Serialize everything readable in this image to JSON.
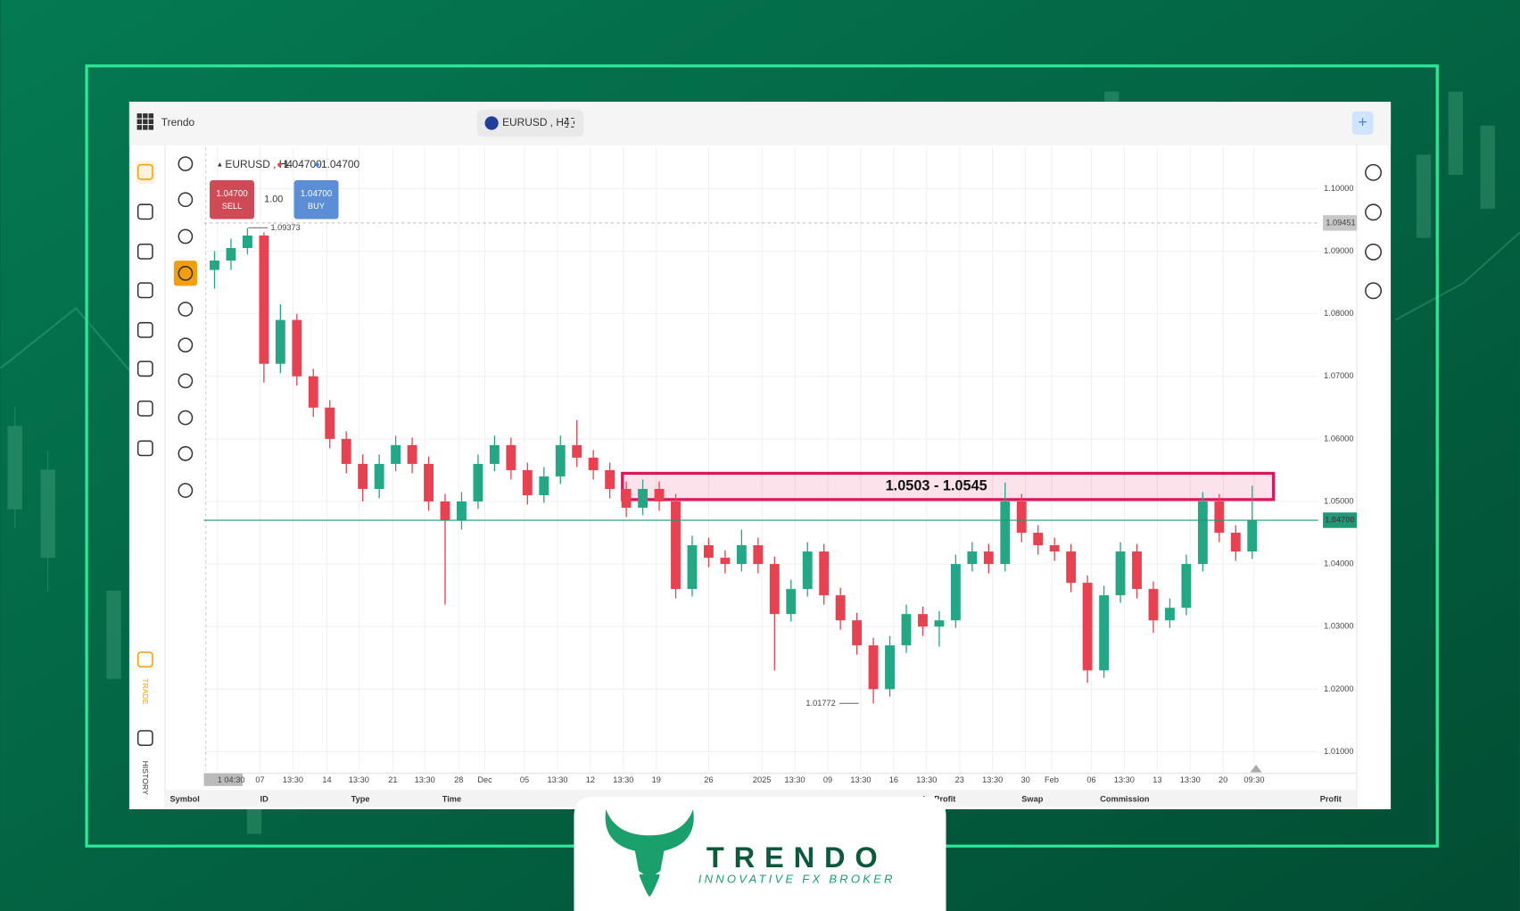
{
  "app": {
    "name": "Trendo",
    "symbol_tab": "EURUSD , H4"
  },
  "sidebar": {
    "trade": "TRADE",
    "history": "HISTORY"
  },
  "chart_header": {
    "symbol": "EURUSD , H4",
    "bid": "1.04700",
    "ask": "1.04700"
  },
  "order": {
    "sell_price": "1.04700",
    "sell": "SELL",
    "volume": "1.00",
    "buy_price": "1.04700",
    "buy": "BUY"
  },
  "chart_data": {
    "type": "candlestick",
    "up_color": "#22a884",
    "down_color": "#e8414f",
    "open": [
      1.087,
      1.0885,
      1.0905,
      1.0925,
      1.072,
      1.079,
      1.07,
      1.065,
      1.06,
      1.056,
      1.052,
      1.056,
      1.059,
      1.056,
      1.05,
      1.047,
      1.05,
      1.056,
      1.059,
      1.055,
      1.051,
      1.054,
      1.059,
      1.057,
      1.055,
      1.052,
      1.049,
      1.052,
      1.05,
      1.036,
      1.043,
      1.041,
      1.04,
      1.043,
      1.04,
      1.032,
      1.036,
      1.042,
      1.035,
      1.031,
      1.027,
      1.02,
      1.027,
      1.032,
      1.03,
      1.031,
      1.04,
      1.042,
      1.04,
      1.05,
      1.045,
      1.043,
      1.042,
      1.037,
      1.023,
      1.035,
      1.042,
      1.036,
      1.031,
      1.033,
      1.04,
      1.05,
      1.045,
      1.042
    ],
    "high": [
      1.09,
      1.092,
      1.0937,
      1.093,
      1.0815,
      1.08,
      1.0712,
      1.0662,
      1.0612,
      1.0575,
      1.0575,
      1.0605,
      1.0602,
      1.0572,
      1.0512,
      1.0515,
      1.0575,
      1.0605,
      1.0602,
      1.0562,
      1.0555,
      1.0605,
      1.063,
      1.0582,
      1.0562,
      1.0532,
      1.0535,
      1.0532,
      1.0512,
      1.0445,
      1.0442,
      1.0422,
      1.0455,
      1.0442,
      1.0412,
      1.0375,
      1.0435,
      1.0432,
      1.0362,
      1.0322,
      1.0282,
      1.0285,
      1.0335,
      1.0332,
      1.0325,
      1.0415,
      1.0435,
      1.0432,
      1.053,
      1.0512,
      1.0462,
      1.0442,
      1.0432,
      1.0382,
      1.0365,
      1.0435,
      1.0432,
      1.0372,
      1.0345,
      1.0415,
      1.0515,
      1.0512,
      1.0462,
      1.0525
    ],
    "low": [
      1.084,
      1.087,
      1.0895,
      1.069,
      1.0705,
      1.0685,
      1.0635,
      1.0585,
      1.0545,
      1.05,
      1.0505,
      1.0548,
      1.0545,
      1.0485,
      1.0335,
      1.0455,
      1.0488,
      1.0548,
      1.0535,
      1.0495,
      1.0498,
      1.0528,
      1.0555,
      1.0535,
      1.0505,
      1.0475,
      1.0478,
      1.0485,
      1.0345,
      1.0348,
      1.0395,
      1.0385,
      1.0388,
      1.0385,
      1.023,
      1.0308,
      1.0348,
      1.0335,
      1.0295,
      1.0255,
      1.0177,
      1.0188,
      1.0258,
      1.0285,
      1.0268,
      1.0298,
      1.0388,
      1.0385,
      1.0388,
      1.0435,
      1.0415,
      1.0405,
      1.0355,
      1.021,
      1.0218,
      1.0338,
      1.0345,
      1.029,
      1.0298,
      1.0318,
      1.0388,
      1.0435,
      1.0405,
      1.0408
    ],
    "close": [
      1.0885,
      1.0905,
      1.0925,
      1.072,
      1.079,
      1.07,
      1.065,
      1.06,
      1.056,
      1.052,
      1.056,
      1.059,
      1.056,
      1.05,
      1.047,
      1.05,
      1.056,
      1.059,
      1.055,
      1.051,
      1.054,
      1.059,
      1.057,
      1.055,
      1.052,
      1.049,
      1.052,
      1.05,
      1.036,
      1.043,
      1.041,
      1.04,
      1.043,
      1.04,
      1.032,
      1.036,
      1.042,
      1.035,
      1.031,
      1.027,
      1.02,
      1.027,
      1.032,
      1.03,
      1.031,
      1.04,
      1.042,
      1.04,
      1.05,
      1.045,
      1.043,
      1.042,
      1.037,
      1.023,
      1.035,
      1.042,
      1.036,
      1.031,
      1.033,
      1.04,
      1.05,
      1.045,
      1.042,
      1.047
    ],
    "ylim": [
      1.007,
      1.1066
    ],
    "yticks": [
      {
        "value": 1.01,
        "label": "1.01000"
      },
      {
        "value": 1.02,
        "label": "1.02000"
      },
      {
        "value": 1.03,
        "label": "1.03000"
      },
      {
        "value": 1.04,
        "label": "1.04000"
      },
      {
        "value": 1.05,
        "label": "1.05000"
      },
      {
        "value": 1.06,
        "label": "1.06000"
      },
      {
        "value": 1.07,
        "label": "1.07000"
      },
      {
        "value": 1.08,
        "label": "1.08000"
      },
      {
        "value": 1.09,
        "label": "1.09000"
      },
      {
        "value": 1.1,
        "label": "1.10000"
      }
    ],
    "x_labels": [
      "1 04:30",
      "07",
      "13:30",
      "14",
      "13:30",
      "21",
      "13:30",
      "28",
      "Dec",
      "05",
      "13:30",
      "12",
      "13:30",
      "19",
      "26",
      "2025",
      "13:30",
      "09",
      "13:30",
      "16",
      "13:30",
      "23",
      "13:30",
      "30",
      "Feb",
      "06",
      "13:30",
      "13",
      "13:30",
      "20",
      "09:30"
    ],
    "grid": true,
    "current_price": {
      "value": 1.047,
      "label": "1.04700",
      "color": "#1f9a78"
    },
    "crosshair_price": {
      "value": 1.09451,
      "label": "1.09451"
    },
    "high_marker": {
      "value": 1.09373,
      "label": "1.09373"
    },
    "low_marker": {
      "value": 1.01772,
      "label": "1.01772"
    },
    "zone": {
      "low": 1.0503,
      "high": 1.0545,
      "label": "1.0503 - 1.0545",
      "color": "#e0145a"
    }
  },
  "table_headers": [
    "Symbol",
    "ID",
    "Type",
    "Time",
    "ke Profit",
    "Swap",
    "Commission",
    "Profit"
  ],
  "brand": {
    "name": "TRENDO",
    "tagline": "INNOVATIVE FX BROKER"
  }
}
